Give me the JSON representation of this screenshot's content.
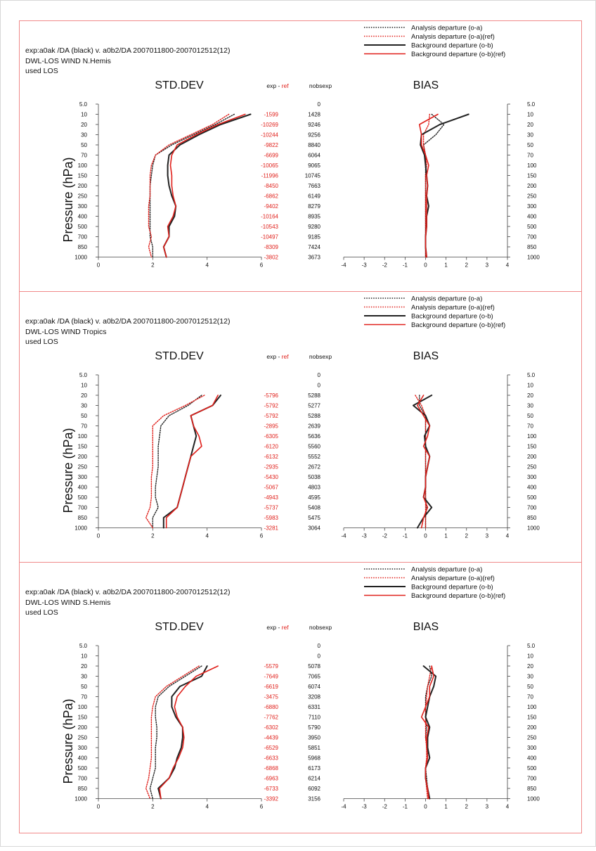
{
  "colors": {
    "exp": "#222222",
    "ref": "#e0201b",
    "frame": "#f08a8a",
    "axis": "#444444"
  },
  "labels": {
    "std_title": "STD.DEV",
    "bias_title": "BIAS",
    "exp_word": "exp",
    "dash": " - ",
    "ref_word": "ref",
    "nobs_header": "nobsexp",
    "ylabel": "Pressure (hPa)",
    "used_los": "used LOS",
    "legend": [
      "Analysis departure (o-a)",
      "Analysis departure (o-a)(ref)",
      "Background departure (o-b)",
      "Background departure (o-b)(ref)"
    ]
  },
  "chart_data": [
    {
      "type": "line",
      "title": "DWL-LOS WIND  N.Hemis",
      "header": "exp:a0ak /DA (black)  v. a0b2/DA 2007011800-2007012512(12)",
      "ylabel": "Pressure (hPa)",
      "levels": [
        "5.0",
        "10",
        "20",
        "30",
        "50",
        "70",
        "100",
        "150",
        "200",
        "250",
        "300",
        "400",
        "500",
        "700",
        "850",
        "1000"
      ],
      "std_ticks": [
        "0",
        "2",
        "4",
        "6"
      ],
      "bias_ticks": [
        "-4",
        "-3",
        "-2",
        "-1",
        "0",
        "1",
        "2",
        "3",
        "4"
      ],
      "std_xlim": [
        0,
        6
      ],
      "bias_xlim": [
        -4,
        4
      ],
      "diff": [
        "",
        "-1599",
        "-10269",
        "-10244",
        "-9822",
        "-6699",
        "-10065",
        "-11996",
        "-8450",
        "-6862",
        "-9402",
        "-10164",
        "-10543",
        "-10497",
        "-8309",
        "-3802"
      ],
      "nobs": [
        "0",
        "1428",
        "9246",
        "9256",
        "8840",
        "6064",
        "9065",
        "10745",
        "7663",
        "6149",
        "8279",
        "8935",
        "9280",
        "9185",
        "7424",
        "3673"
      ],
      "std_dev": [
        {
          "name": "Analysis departure (o-a)",
          "values": [
            null,
            5.0,
            4.3,
            3.5,
            2.7,
            2.1,
            2.0,
            1.95,
            1.9,
            1.9,
            1.9,
            1.9,
            1.9,
            1.9,
            2.0,
            2.0
          ]
        },
        {
          "name": "Analysis departure (o-a)(ref)",
          "values": [
            null,
            4.8,
            4.2,
            3.4,
            2.6,
            2.1,
            1.95,
            1.9,
            1.9,
            1.9,
            1.85,
            1.85,
            1.85,
            1.95,
            1.85,
            1.95
          ]
        },
        {
          "name": "Background departure (o-b)",
          "values": [
            null,
            5.6,
            4.5,
            3.7,
            3.0,
            2.6,
            2.55,
            2.55,
            2.6,
            2.7,
            2.85,
            2.8,
            2.6,
            2.6,
            2.4,
            2.5
          ]
        },
        {
          "name": "Background departure (o-b)(ref)",
          "values": [
            null,
            5.4,
            4.4,
            3.6,
            2.9,
            2.7,
            2.65,
            2.7,
            2.7,
            2.75,
            2.85,
            2.75,
            2.55,
            2.6,
            2.4,
            2.5
          ]
        }
      ],
      "bias": [
        {
          "name": "Analysis departure (o-a)",
          "values": [
            null,
            0.3,
            0.9,
            0.5,
            -0.1,
            0.0,
            0.0,
            0.0,
            0.0,
            0.0,
            0.0,
            0.0,
            0.0,
            0.0,
            0.0,
            0.0
          ]
        },
        {
          "name": "Analysis departure (o-a)(ref)",
          "values": [
            null,
            0.2,
            0.15,
            -0.1,
            -0.1,
            0.0,
            0.05,
            0.0,
            0.0,
            0.0,
            0.0,
            0.0,
            0.0,
            0.0,
            0.0,
            0.0
          ]
        },
        {
          "name": "Background departure (o-b)",
          "values": [
            null,
            2.1,
            0.7,
            -0.2,
            -0.25,
            -0.05,
            0.0,
            0.05,
            0.1,
            0.05,
            0.15,
            0.05,
            0.05,
            0.0,
            0.0,
            0.05
          ]
        },
        {
          "name": "Background departure (o-b)(ref)",
          "values": [
            null,
            0.6,
            -0.3,
            -0.2,
            -0.2,
            0.0,
            0.15,
            0.05,
            0.1,
            0.05,
            0.05,
            0.05,
            0.05,
            0.0,
            0.0,
            0.05
          ]
        }
      ]
    },
    {
      "type": "line",
      "title": "DWL-LOS WIND  Tropics",
      "header": "exp:a0ak /DA (black)  v. a0b2/DA 2007011800-2007012512(12)",
      "ylabel": "Pressure (hPa)",
      "levels": [
        "5.0",
        "10",
        "20",
        "30",
        "50",
        "70",
        "100",
        "150",
        "200",
        "250",
        "300",
        "400",
        "500",
        "700",
        "850",
        "1000"
      ],
      "std_ticks": [
        "0",
        "2",
        "4",
        "6"
      ],
      "bias_ticks": [
        "-4",
        "-3",
        "-2",
        "-1",
        "0",
        "1",
        "2",
        "3",
        "4"
      ],
      "std_xlim": [
        0,
        6
      ],
      "bias_xlim": [
        -4,
        4
      ],
      "diff": [
        "",
        "",
        "-5796",
        "-5792",
        "-5792",
        "-2895",
        "-6305",
        "-6120",
        "-6132",
        "-2935",
        "-5430",
        "-5067",
        "-4943",
        "-5737",
        "-5983",
        "-3281"
      ],
      "nobs": [
        "0",
        "0",
        "5288",
        "5277",
        "5288",
        "2639",
        "5636",
        "5560",
        "5552",
        "2672",
        "5038",
        "4803",
        "4595",
        "5408",
        "5475",
        "3064"
      ],
      "std_dev": [
        {
          "name": "Analysis departure (o-a)",
          "values": [
            null,
            null,
            3.8,
            3.3,
            2.6,
            2.3,
            2.25,
            2.2,
            2.2,
            2.2,
            2.15,
            2.1,
            2.1,
            2.2,
            2.0,
            2.0
          ]
        },
        {
          "name": "Analysis departure (o-a)(ref)",
          "values": [
            null,
            null,
            3.9,
            3.2,
            2.4,
            2.0,
            2.0,
            2.0,
            2.0,
            2.0,
            1.95,
            1.95,
            1.95,
            1.9,
            1.75,
            2.0
          ]
        },
        {
          "name": "Background departure (o-b)",
          "values": [
            null,
            null,
            4.5,
            4.2,
            3.4,
            3.5,
            3.6,
            3.5,
            3.4,
            3.3,
            3.2,
            3.1,
            3.0,
            2.9,
            2.4,
            2.4
          ]
        },
        {
          "name": "Background departure (o-b)(ref)",
          "values": [
            null,
            null,
            4.4,
            4.2,
            3.4,
            3.5,
            3.7,
            3.8,
            3.4,
            3.3,
            3.2,
            3.1,
            3.0,
            2.9,
            2.5,
            2.5
          ]
        }
      ],
      "bias": [
        {
          "name": "Analysis departure (o-a)",
          "values": [
            null,
            null,
            -0.3,
            -0.3,
            0.0,
            0.0,
            0.0,
            0.0,
            0.0,
            0.0,
            0.0,
            0.0,
            0.0,
            0.05,
            0.0,
            0.0
          ]
        },
        {
          "name": "Analysis departure (o-a)(ref)",
          "values": [
            null,
            null,
            -0.5,
            -0.2,
            0.0,
            0.0,
            0.0,
            0.0,
            0.0,
            0.0,
            0.0,
            0.0,
            0.0,
            0.0,
            0.0,
            0.0
          ]
        },
        {
          "name": "Background departure (o-b)",
          "values": [
            null,
            null,
            0.3,
            -0.6,
            0.0,
            0.2,
            -0.05,
            0.0,
            0.2,
            0.1,
            0.0,
            0.0,
            -0.1,
            0.3,
            -0.1,
            -0.4
          ]
        },
        {
          "name": "Background departure (o-b)(ref)",
          "values": [
            null,
            null,
            -0.1,
            -0.4,
            -0.1,
            0.2,
            0.1,
            -0.1,
            0.2,
            0.1,
            0.0,
            0.0,
            -0.1,
            0.1,
            -0.1,
            -0.2
          ]
        }
      ]
    },
    {
      "type": "line",
      "title": "DWL-LOS WIND  S.Hemis",
      "header": "exp:a0ak /DA (black)  v. a0b2/DA 2007011800-2007012512(12)",
      "ylabel": "Pressure (hPa)",
      "levels": [
        "5.0",
        "10",
        "20",
        "30",
        "50",
        "70",
        "100",
        "150",
        "200",
        "250",
        "300",
        "400",
        "500",
        "700",
        "850",
        "1000"
      ],
      "std_ticks": [
        "0",
        "2",
        "4",
        "6"
      ],
      "bias_ticks": [
        "-4",
        "-3",
        "-2",
        "-1",
        "0",
        "1",
        "2",
        "3",
        "4"
      ],
      "std_xlim": [
        0,
        6
      ],
      "bias_xlim": [
        -4,
        4
      ],
      "diff": [
        "",
        "",
        "-5579",
        "-7649",
        "-6619",
        "-3475",
        "-6880",
        "-7762",
        "-6302",
        "-4439",
        "-6529",
        "-6633",
        "-6868",
        "-6963",
        "-6733",
        "-3392"
      ],
      "nobs": [
        "0",
        "0",
        "5078",
        "7065",
        "6074",
        "3208",
        "6331",
        "7110",
        "5790",
        "3950",
        "5851",
        "5968",
        "6173",
        "6214",
        "6092",
        "3156"
      ],
      "std_dev": [
        {
          "name": "Analysis departure (o-a)",
          "values": [
            null,
            null,
            3.8,
            3.2,
            2.6,
            2.2,
            2.1,
            2.1,
            2.15,
            2.15,
            2.1,
            2.1,
            2.1,
            2.0,
            1.9,
            2.0
          ]
        },
        {
          "name": "Analysis departure (o-a)(ref)",
          "values": [
            null,
            null,
            3.7,
            3.1,
            2.5,
            2.1,
            2.0,
            1.95,
            1.95,
            1.95,
            1.95,
            1.95,
            1.9,
            1.85,
            1.75,
            1.9
          ]
        },
        {
          "name": "Background departure (o-b)",
          "values": [
            null,
            null,
            4.0,
            3.8,
            3.0,
            2.7,
            2.7,
            2.85,
            3.1,
            3.1,
            3.05,
            2.9,
            2.8,
            2.6,
            2.2,
            2.3
          ]
        },
        {
          "name": "Background departure (o-b)(ref)",
          "values": [
            null,
            null,
            4.4,
            3.6,
            3.2,
            2.9,
            2.8,
            2.9,
            3.1,
            3.15,
            3.1,
            2.95,
            2.75,
            2.6,
            2.25,
            2.3
          ]
        }
      ],
      "bias": [
        {
          "name": "Analysis departure (o-a)",
          "values": [
            null,
            null,
            0.2,
            0.3,
            0.1,
            0.0,
            0.0,
            0.0,
            0.05,
            0.0,
            0.1,
            0.1,
            0.0,
            0.05,
            0.1,
            0.15
          ]
        },
        {
          "name": "Analysis departure (o-a)(ref)",
          "values": [
            null,
            null,
            0.3,
            0.2,
            0.1,
            0.05,
            0.0,
            0.0,
            0.0,
            0.0,
            0.05,
            0.05,
            0.0,
            0.0,
            0.05,
            0.1
          ]
        },
        {
          "name": "Background departure (o-b)",
          "values": [
            null,
            null,
            -0.1,
            0.5,
            0.4,
            0.2,
            0.1,
            0.0,
            0.2,
            0.1,
            0.1,
            0.2,
            0.0,
            0.0,
            0.1,
            0.2
          ]
        },
        {
          "name": "Background departure (o-b)(ref)",
          "values": [
            null,
            null,
            0.3,
            0.4,
            0.2,
            0.2,
            0.0,
            -0.2,
            0.15,
            0.05,
            0.05,
            0.1,
            0.0,
            0.0,
            0.1,
            0.15
          ]
        }
      ]
    }
  ]
}
